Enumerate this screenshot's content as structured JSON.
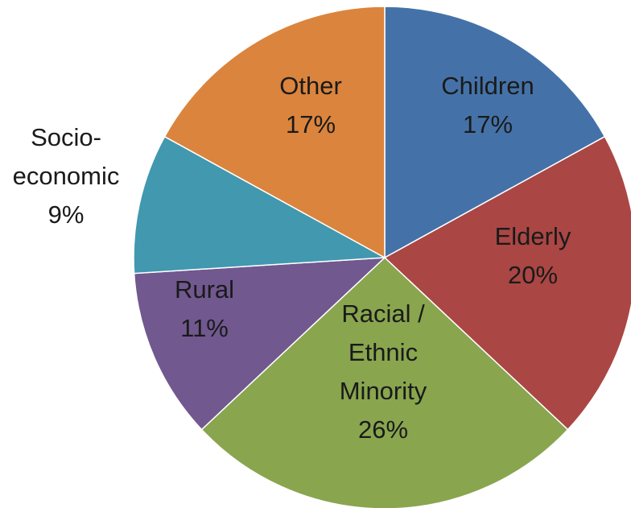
{
  "chart_data": {
    "type": "pie",
    "start_angle_deg": 0,
    "direction": "clockwise",
    "slices": [
      {
        "label": "Children",
        "value": 17,
        "value_label": "17%",
        "color": "#4472a8",
        "label_lines": [
          "Children",
          "17%"
        ],
        "label_inside": true
      },
      {
        "label": "Elderly",
        "value": 20,
        "value_label": "20%",
        "color": "#aa4644",
        "label_lines": [
          "Elderly",
          "20%"
        ],
        "label_inside": true
      },
      {
        "label": "Racial / Ethnic Minority",
        "value": 26,
        "value_label": "26%",
        "color": "#89a54e",
        "label_lines": [
          "Racial /",
          "Ethnic",
          "Minority",
          "26%"
        ],
        "label_inside": true
      },
      {
        "label": "Rural",
        "value": 11,
        "value_label": "11%",
        "color": "#71588f",
        "label_lines": [
          "Rural",
          "11%"
        ],
        "label_inside": true
      },
      {
        "label": "Socio-economic",
        "value": 9,
        "value_label": "9%",
        "color": "#4198af",
        "label_lines": [
          "Socio-",
          "economic",
          "9%"
        ],
        "label_inside": false
      },
      {
        "label": "Other",
        "value": 17,
        "value_label": "17%",
        "color": "#db843d",
        "label_lines": [
          "Other",
          "17%"
        ],
        "label_inside": true
      }
    ]
  }
}
